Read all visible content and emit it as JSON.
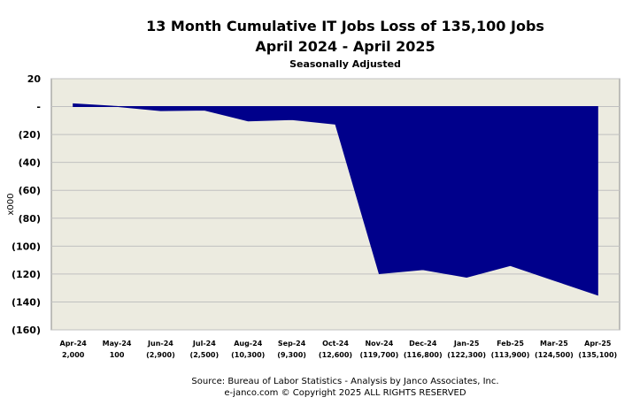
{
  "chart_data": {
    "type": "area",
    "title": "13 Month Cumulative IT Jobs Loss of 135,100 Jobs",
    "subtitle": "April 2024 - April 2025",
    "subtitle2": "Seasonally  Adjusted",
    "ylabel": "x000",
    "ylim": [
      -160,
      20
    ],
    "yticks": [
      20,
      0,
      -20,
      -40,
      -60,
      -80,
      -100,
      -120,
      -140,
      -160
    ],
    "ytick_labels": [
      "20",
      "-",
      "(20)",
      "(40)",
      "(60)",
      "(80)",
      "(100)",
      "(120)",
      "(140)",
      "(160)"
    ],
    "categories": [
      "Apr-24",
      "May-24",
      "Jun-24",
      "Jul-24",
      "Aug-24",
      "Sep-24",
      "Oct-24",
      "Nov-24",
      "Dec-24",
      "Jan-25",
      "Feb-25",
      "Mar-25",
      "Apr-25"
    ],
    "value_labels": [
      "2,000",
      "100",
      "(2,900)",
      "(2,500)",
      "(10,300)",
      "(9,300)",
      "(12,600)",
      "(119,700)",
      "(116,800)",
      "(122,300)",
      "(113,900)",
      "(124,500)",
      "(135,100)"
    ],
    "values": [
      2.0,
      0.1,
      -2.9,
      -2.5,
      -10.3,
      -9.3,
      -12.6,
      -119.7,
      -116.8,
      -122.3,
      -113.9,
      -124.5,
      -135.1
    ],
    "grid": true,
    "colors": {
      "fill": "#00008b",
      "plot_bg": "#ecebe0",
      "grid": "#c0c0c0"
    }
  },
  "source": {
    "line1": "Source: Bureau of Labor Statistics - Analysis by Janco Associates, Inc.",
    "line2": "e-janco.com © Copyright 2025  ALL RIGHTS RESERVED"
  }
}
